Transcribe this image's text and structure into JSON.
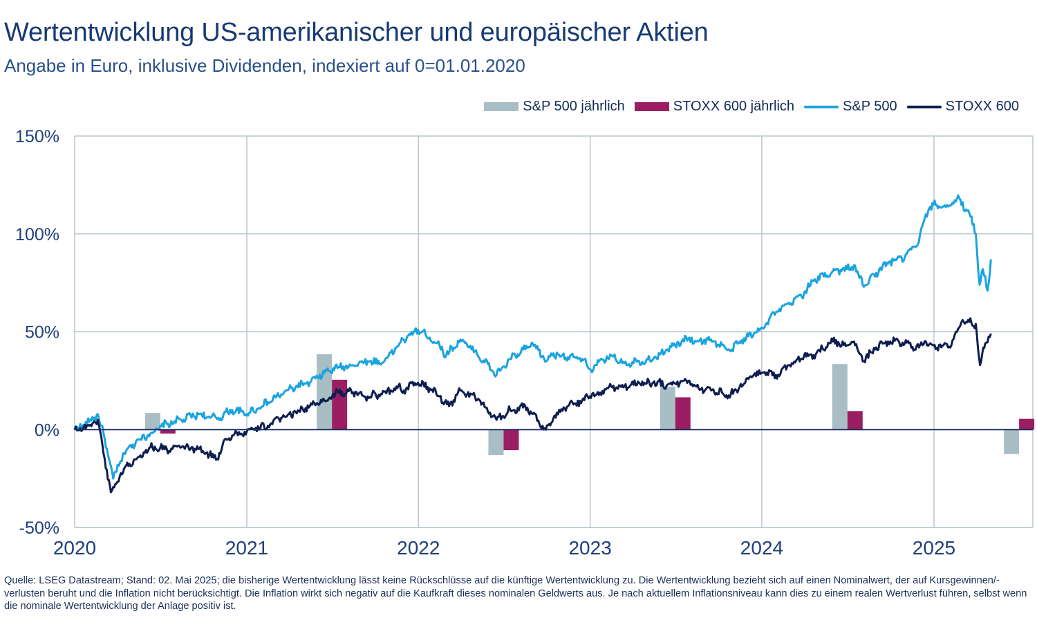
{
  "title": "Wertentwicklung US-amerikanischer und europäischer Aktien",
  "subtitle": "Angabe in Euro, inklusive Dividenden, indexiert auf 0=01.01.2020",
  "legend": [
    {
      "label": "S&P 500 jährlich",
      "kind": "box",
      "color": "#a8bec4"
    },
    {
      "label": "STOXX 600 jährlich",
      "kind": "box",
      "color": "#9b1e63"
    },
    {
      "label": "S&P 500",
      "kind": "line",
      "color": "#1aa3e0"
    },
    {
      "label": "STOXX 600",
      "kind": "line",
      "color": "#0d1d4f"
    }
  ],
  "footnote": "Quelle: LSEG Datastream; Stand: 02. Mai 2025; die bisherige Wertentwicklung lässt keine Rückschlüsse auf die künftige Wertentwicklung zu. Die Wertentwicklung bezieht sich auf einen Nominalwert, der auf Kursgewinnen/-verlusten beruht und die Inflation nicht berücksichtigt. Die Inflation wirkt sich negativ auf die Kaufkraft dieses nominalen Geldwerts aus. Je nach aktuellem Inflationsniveau kann dies zu einem realen Wertverlust führen, selbst wenn die nominale Wertentwicklung der Anlage positiv ist.",
  "chart_data": {
    "type": "line",
    "title": "Wertentwicklung US-amerikanischer und europäischer Aktien",
    "subtitle": "Angabe in Euro, inklusive Dividenden, indexiert auf 0=01.01.2020",
    "xlabel": "",
    "ylabel": "",
    "x_ticks": [
      "2020",
      "2021",
      "2022",
      "2023",
      "2024",
      "2025"
    ],
    "y_ticks": [
      "-50%",
      "0%",
      "50%",
      "100%",
      "150%"
    ],
    "ylim": [
      -50,
      150
    ],
    "xlim": [
      "2020-01-01",
      "2025-06-30"
    ],
    "grid": true,
    "legend_position": "top-right",
    "bar_series": [
      {
        "name": "S&P 500 jährlich",
        "color": "#a8bec4",
        "categories": [
          "2020",
          "2021",
          "2022",
          "2023",
          "2024",
          "2025"
        ],
        "values": [
          8.5,
          38.5,
          -13,
          22,
          33.5,
          -12.5
        ]
      },
      {
        "name": "STOXX 600 jährlich",
        "color": "#9b1e63",
        "categories": [
          "2020",
          "2021",
          "2022",
          "2023",
          "2024",
          "2025"
        ],
        "values": [
          -2,
          25.5,
          -10.5,
          16.5,
          9.5,
          5.5
        ]
      }
    ],
    "series": [
      {
        "name": "S&P 500",
        "color": "#1aa3e0",
        "x": [
          "2020-01-01",
          "2020-02-01",
          "2020-02-19",
          "2020-03-05",
          "2020-03-23",
          "2020-04-15",
          "2020-05-15",
          "2020-06-10",
          "2020-07-15",
          "2020-08-15",
          "2020-09-20",
          "2020-10-15",
          "2020-11-01",
          "2020-12-01",
          "2021-01-01",
          "2021-02-15",
          "2021-03-15",
          "2021-04-15",
          "2021-05-15",
          "2021-06-15",
          "2021-07-15",
          "2021-08-15",
          "2021-09-15",
          "2021-10-15",
          "2021-11-15",
          "2021-12-01",
          "2021-12-31",
          "2022-01-25",
          "2022-02-15",
          "2022-03-01",
          "2022-03-31",
          "2022-05-01",
          "2022-06-16",
          "2022-07-15",
          "2022-08-16",
          "2022-09-01",
          "2022-09-30",
          "2022-10-15",
          "2022-11-15",
          "2022-12-15",
          "2022-12-31",
          "2023-01-15",
          "2023-02-15",
          "2023-03-15",
          "2023-04-15",
          "2023-05-15",
          "2023-06-15",
          "2023-07-31",
          "2023-08-15",
          "2023-09-15",
          "2023-10-27",
          "2023-11-15",
          "2023-12-15",
          "2023-12-31",
          "2024-01-31",
          "2024-02-29",
          "2024-03-31",
          "2024-04-20",
          "2024-05-31",
          "2024-06-30",
          "2024-07-15",
          "2024-08-05",
          "2024-08-31",
          "2024-09-30",
          "2024-10-31",
          "2024-11-30",
          "2024-12-15",
          "2024-12-31",
          "2025-01-31",
          "2025-02-19",
          "2025-03-15",
          "2025-03-31",
          "2025-04-08",
          "2025-04-15",
          "2025-04-25",
          "2025-05-02"
        ],
        "values": [
          0,
          4,
          8,
          -5,
          -25,
          -12,
          -5,
          -2,
          3,
          5,
          8,
          6,
          6,
          10,
          8,
          14,
          18,
          22,
          24,
          29,
          32,
          33,
          35,
          34,
          42,
          46,
          51,
          47,
          43,
          38,
          46,
          40,
          28,
          36,
          41,
          44,
          35,
          39,
          37,
          36,
          31,
          33,
          38,
          34,
          35,
          36,
          41,
          47,
          45,
          46,
          40,
          45,
          49,
          52,
          60,
          64,
          70,
          76,
          81,
          82,
          84,
          73,
          80,
          86,
          88,
          96,
          110,
          115,
          114,
          118,
          112,
          100,
          74,
          82,
          71,
          87
        ]
      },
      {
        "name": "STOXX 600",
        "color": "#0d1d4f",
        "x": [
          "2020-01-01",
          "2020-02-01",
          "2020-02-19",
          "2020-03-05",
          "2020-03-18",
          "2020-04-15",
          "2020-05-15",
          "2020-06-10",
          "2020-07-15",
          "2020-08-15",
          "2020-09-20",
          "2020-10-30",
          "2020-11-15",
          "2020-12-01",
          "2021-01-01",
          "2021-02-15",
          "2021-03-15",
          "2021-04-15",
          "2021-05-15",
          "2021-06-15",
          "2021-07-15",
          "2021-08-15",
          "2021-09-15",
          "2021-10-15",
          "2021-11-15",
          "2021-12-01",
          "2021-12-31",
          "2022-01-25",
          "2022-02-15",
          "2022-03-07",
          "2022-03-31",
          "2022-05-01",
          "2022-06-16",
          "2022-07-15",
          "2022-08-16",
          "2022-09-01",
          "2022-09-29",
          "2022-10-15",
          "2022-11-15",
          "2022-12-15",
          "2022-12-31",
          "2023-01-15",
          "2023-02-15",
          "2023-03-15",
          "2023-04-15",
          "2023-05-15",
          "2023-06-15",
          "2023-07-31",
          "2023-08-15",
          "2023-09-15",
          "2023-10-27",
          "2023-11-15",
          "2023-12-15",
          "2023-12-31",
          "2024-01-31",
          "2024-02-29",
          "2024-03-31",
          "2024-04-20",
          "2024-05-31",
          "2024-06-30",
          "2024-07-15",
          "2024-08-05",
          "2024-08-31",
          "2024-09-30",
          "2024-10-31",
          "2024-11-30",
          "2024-12-15",
          "2024-12-31",
          "2025-01-31",
          "2025-02-19",
          "2025-03-03",
          "2025-03-31",
          "2025-04-09",
          "2025-04-20",
          "2025-05-02"
        ],
        "values": [
          0,
          2,
          5,
          -15,
          -32,
          -20,
          -14,
          -9,
          -10,
          -9,
          -10,
          -15,
          -5,
          -3,
          -1,
          2,
          6,
          9,
          12,
          15,
          19,
          19,
          17,
          18,
          22,
          20,
          24,
          21,
          17,
          12,
          20,
          17,
          5,
          10,
          12,
          8,
          0,
          6,
          12,
          15,
          17,
          18,
          22,
          22,
          24,
          24,
          23,
          25,
          22,
          20,
          18,
          22,
          28,
          29,
          28,
          33,
          38,
          38,
          45,
          43,
          45,
          35,
          42,
          45,
          44,
          42,
          45,
          43,
          42,
          50,
          56,
          54,
          33,
          44,
          49
        ]
      }
    ]
  }
}
